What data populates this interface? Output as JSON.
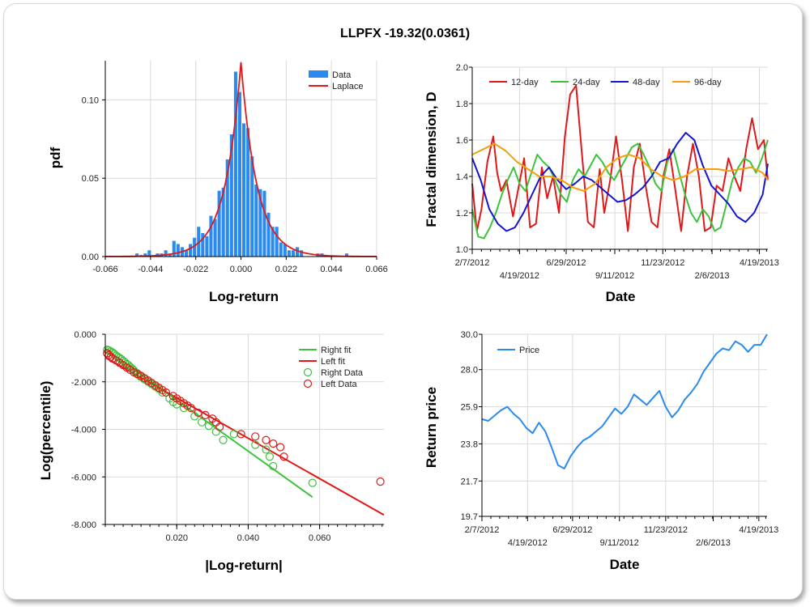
{
  "title": "LLPFX -19.32(0.0361)",
  "colors": {
    "bar": "#2a8af0",
    "laplace": "#e0191c",
    "red": "#e01818",
    "green": "#3cc33c",
    "blue": "#1414d0",
    "orange": "#f5a00a",
    "price": "#2a8af0",
    "grid": "#d9d9d9"
  },
  "chart_data": [
    {
      "type": "bar",
      "id": "hist",
      "xlabel": "Log-return",
      "ylabel": "pdf",
      "xlim": [
        -0.066,
        0.066
      ],
      "ylim": [
        0,
        0.125
      ],
      "xticks": [
        "-0.066",
        "-0.044",
        "-0.022",
        "0.000",
        "0.022",
        "0.044",
        "0.066"
      ],
      "yticks": [
        "0.00",
        "0.05",
        "0.10"
      ],
      "grid": true,
      "legend": "top-right",
      "bin_width": 0.002,
      "bins": [
        -0.0506,
        -0.0486,
        -0.0466,
        -0.0446,
        -0.0406,
        -0.0386,
        -0.0366,
        -0.0346,
        -0.0326,
        -0.0306,
        -0.0286,
        -0.0266,
        -0.0246,
        -0.0226,
        -0.0206,
        -0.0186,
        -0.0166,
        -0.0146,
        -0.0126,
        -0.0106,
        -0.0086,
        -0.0066,
        -0.0046,
        -0.0026,
        -0.0006,
        0.0014,
        0.0034,
        0.0054,
        0.0074,
        0.0094,
        0.0114,
        0.0134,
        0.0154,
        0.0174,
        0.0194,
        0.0214,
        0.0234,
        0.0254,
        0.0274,
        0.0294,
        0.0374,
        0.0394,
        0.0514
      ],
      "values": [
        0.002,
        0.001,
        0.002,
        0.004,
        0.002,
        0.002,
        0.004,
        0.002,
        0.01,
        0.008,
        0.006,
        0.004,
        0.008,
        0.012,
        0.019,
        0.015,
        0.013,
        0.026,
        0.024,
        0.042,
        0.044,
        0.062,
        0.078,
        0.118,
        0.105,
        0.085,
        0.082,
        0.064,
        0.046,
        0.043,
        0.042,
        0.028,
        0.019,
        0.019,
        0.009,
        0.008,
        0.004,
        0.004,
        0.006,
        0.004,
        0.002,
        0.002,
        0.002
      ],
      "series": [
        {
          "name": "Data"
        },
        {
          "name": "Laplace"
        }
      ],
      "laplace": {
        "peak": 0.124,
        "scale": 0.0078
      }
    },
    {
      "type": "line",
      "id": "fractal",
      "xlabel": "Date",
      "ylabel": "Fractal dimension, D",
      "ylim": [
        1.0,
        2.0
      ],
      "yticks": [
        "1.0",
        "1.2",
        "1.4",
        "1.6",
        "1.8",
        "2.0"
      ],
      "xticks_top": [
        "2/7/2012",
        "6/29/2012",
        "11/23/2012",
        "4/19/2013"
      ],
      "xticks_bottom": [
        "4/19/2012",
        "9/11/2012",
        "2/6/2013"
      ],
      "x_range": [
        "2012-02-07",
        "2013-05-02"
      ],
      "grid": true,
      "legend": "top-left",
      "series": [
        {
          "name": "12-day",
          "color": "#e01818",
          "dates": [
            "2012-02-07",
            "2012-02-14",
            "2012-02-21",
            "2012-03-01",
            "2012-03-10",
            "2012-03-16",
            "2012-03-22",
            "2012-03-30",
            "2012-04-09",
            "2012-04-18",
            "2012-04-26",
            "2012-05-05",
            "2012-05-14",
            "2012-05-23",
            "2012-05-31",
            "2012-06-09",
            "2012-06-18",
            "2012-06-27",
            "2012-07-05",
            "2012-07-14",
            "2012-07-23",
            "2012-08-01",
            "2012-08-10",
            "2012-08-19",
            "2012-08-26",
            "2012-09-04",
            "2012-09-13",
            "2012-09-22",
            "2012-10-01",
            "2012-10-10",
            "2012-10-19",
            "2012-10-28",
            "2012-11-06",
            "2012-11-15",
            "2012-11-24",
            "2012-12-03",
            "2012-12-12",
            "2012-12-21",
            "2012-12-30",
            "2013-01-08",
            "2013-01-17",
            "2013-01-26",
            "2013-02-04",
            "2013-02-13",
            "2013-02-22",
            "2013-03-03",
            "2013-03-12",
            "2013-03-21",
            "2013-03-30",
            "2013-04-08",
            "2013-04-17",
            "2013-04-26",
            "2013-05-02"
          ],
          "values": [
            1.36,
            1.1,
            1.22,
            1.48,
            1.62,
            1.42,
            1.32,
            1.38,
            1.18,
            1.35,
            1.5,
            1.12,
            1.14,
            1.45,
            1.28,
            1.4,
            1.2,
            1.62,
            1.85,
            1.9,
            1.52,
            1.15,
            1.12,
            1.44,
            1.2,
            1.38,
            1.62,
            1.38,
            1.1,
            1.45,
            1.58,
            1.35,
            1.15,
            1.12,
            1.4,
            1.55,
            1.33,
            1.1,
            1.4,
            1.58,
            1.4,
            1.1,
            1.12,
            1.35,
            1.32,
            1.5,
            1.4,
            1.32,
            1.55,
            1.72,
            1.55,
            1.6,
            1.38
          ]
        },
        {
          "name": "24-day",
          "color": "#3cc33c",
          "dates": [
            "2012-02-07",
            "2012-02-16",
            "2012-02-25",
            "2012-03-05",
            "2012-03-14",
            "2012-03-23",
            "2012-04-01",
            "2012-04-10",
            "2012-04-19",
            "2012-04-28",
            "2012-05-07",
            "2012-05-16",
            "2012-05-25",
            "2012-06-03",
            "2012-06-12",
            "2012-06-21",
            "2012-06-30",
            "2012-07-09",
            "2012-07-18",
            "2012-07-27",
            "2012-08-05",
            "2012-08-14",
            "2012-08-23",
            "2012-09-01",
            "2012-09-10",
            "2012-09-19",
            "2012-09-28",
            "2012-10-07",
            "2012-10-16",
            "2012-10-25",
            "2012-11-03",
            "2012-11-12",
            "2012-11-21",
            "2012-11-30",
            "2012-12-09",
            "2012-12-18",
            "2012-12-27",
            "2013-01-05",
            "2013-01-14",
            "2013-01-23",
            "2013-02-01",
            "2013-02-10",
            "2013-02-19",
            "2013-02-28",
            "2013-03-09",
            "2013-03-18",
            "2013-03-27",
            "2013-04-05",
            "2013-04-14",
            "2013-04-23",
            "2013-05-02"
          ],
          "values": [
            1.22,
            1.07,
            1.06,
            1.12,
            1.2,
            1.3,
            1.38,
            1.45,
            1.36,
            1.32,
            1.42,
            1.52,
            1.48,
            1.45,
            1.38,
            1.3,
            1.26,
            1.38,
            1.44,
            1.4,
            1.46,
            1.52,
            1.48,
            1.42,
            1.38,
            1.44,
            1.5,
            1.56,
            1.58,
            1.52,
            1.45,
            1.36,
            1.32,
            1.48,
            1.55,
            1.42,
            1.3,
            1.2,
            1.15,
            1.22,
            1.18,
            1.1,
            1.12,
            1.25,
            1.38,
            1.45,
            1.5,
            1.48,
            1.42,
            1.5,
            1.6
          ]
        },
        {
          "name": "48-day",
          "color": "#1414d0",
          "dates": [
            "2012-02-07",
            "2012-02-20",
            "2012-03-04",
            "2012-03-17",
            "2012-03-30",
            "2012-04-12",
            "2012-04-25",
            "2012-05-08",
            "2012-05-21",
            "2012-06-03",
            "2012-06-16",
            "2012-06-29",
            "2012-07-12",
            "2012-07-25",
            "2012-08-07",
            "2012-08-20",
            "2012-09-02",
            "2012-09-15",
            "2012-09-28",
            "2012-10-11",
            "2012-10-24",
            "2012-11-06",
            "2012-11-19",
            "2012-12-02",
            "2012-12-15",
            "2012-12-28",
            "2013-01-10",
            "2013-01-23",
            "2013-02-05",
            "2013-02-18",
            "2013-03-03",
            "2013-03-16",
            "2013-03-29",
            "2013-04-11",
            "2013-04-24",
            "2013-05-02"
          ],
          "values": [
            1.5,
            1.38,
            1.22,
            1.14,
            1.1,
            1.12,
            1.2,
            1.3,
            1.4,
            1.45,
            1.38,
            1.33,
            1.36,
            1.4,
            1.38,
            1.34,
            1.3,
            1.26,
            1.27,
            1.3,
            1.34,
            1.4,
            1.48,
            1.5,
            1.58,
            1.64,
            1.6,
            1.46,
            1.35,
            1.3,
            1.25,
            1.18,
            1.15,
            1.2,
            1.3,
            1.47
          ]
        },
        {
          "name": "96-day",
          "color": "#f5a00a",
          "dates": [
            "2012-02-07",
            "2012-02-24",
            "2012-03-12",
            "2012-03-29",
            "2012-04-15",
            "2012-05-02",
            "2012-05-19",
            "2012-06-05",
            "2012-06-22",
            "2012-07-09",
            "2012-07-26",
            "2012-08-12",
            "2012-08-29",
            "2012-09-15",
            "2012-10-02",
            "2012-10-19",
            "2012-11-05",
            "2012-11-22",
            "2012-12-09",
            "2012-12-26",
            "2013-01-12",
            "2013-01-29",
            "2013-02-15",
            "2013-03-04",
            "2013-03-21",
            "2013-04-07",
            "2013-04-24",
            "2013-05-02"
          ],
          "values": [
            1.52,
            1.55,
            1.58,
            1.54,
            1.48,
            1.44,
            1.4,
            1.4,
            1.38,
            1.34,
            1.32,
            1.36,
            1.45,
            1.5,
            1.52,
            1.5,
            1.44,
            1.4,
            1.38,
            1.4,
            1.44,
            1.44,
            1.44,
            1.43,
            1.44,
            1.45,
            1.42,
            1.38
          ]
        }
      ]
    },
    {
      "type": "scatter",
      "id": "tail",
      "xlabel": "|Log-return|",
      "ylabel": "Log(percentile)",
      "xlim": [
        0,
        0.078
      ],
      "ylim": [
        -8,
        0
      ],
      "xticks": [
        "0.020",
        "0.040",
        "0.060"
      ],
      "yticks": [
        "0.000",
        "-2.000",
        "-4.000",
        "-6.000",
        "-8.000"
      ],
      "grid": true,
      "legend": "top-right",
      "fits": [
        {
          "name": "Right fit",
          "color": "#3cc33c",
          "x": [
            0,
            0.058
          ],
          "y": [
            -0.62,
            -6.85
          ]
        },
        {
          "name": "Left fit",
          "color": "#e01818",
          "x": [
            0,
            0.078
          ],
          "y": [
            -0.98,
            -7.6
          ]
        }
      ],
      "right_data": {
        "name": "Right Data",
        "color": "#3cc33c",
        "x": [
          0.0005,
          0.001,
          0.0015,
          0.002,
          0.0025,
          0.003,
          0.0035,
          0.004,
          0.0045,
          0.005,
          0.0055,
          0.006,
          0.0065,
          0.007,
          0.0075,
          0.008,
          0.0085,
          0.009,
          0.0095,
          0.01,
          0.011,
          0.012,
          0.013,
          0.014,
          0.015,
          0.016,
          0.018,
          0.019,
          0.02,
          0.022,
          0.025,
          0.027,
          0.029,
          0.031,
          0.033,
          0.036,
          0.042,
          0.045,
          0.046,
          0.047,
          0.058
        ],
        "y": [
          -0.65,
          -0.68,
          -0.72,
          -0.77,
          -0.82,
          -0.9,
          -0.95,
          -1.0,
          -1.05,
          -1.12,
          -1.18,
          -1.25,
          -1.3,
          -1.38,
          -1.45,
          -1.52,
          -1.6,
          -1.65,
          -1.72,
          -1.8,
          -1.9,
          -2.0,
          -2.1,
          -2.2,
          -2.3,
          -2.45,
          -2.7,
          -2.85,
          -2.95,
          -3.1,
          -3.45,
          -3.7,
          -3.85,
          -4.1,
          -4.45,
          -4.2,
          -4.65,
          -4.85,
          -5.15,
          -5.55,
          -6.25
        ]
      },
      "left_data": {
        "name": "Left Data",
        "color": "#e01818",
        "x": [
          0.0005,
          0.001,
          0.0015,
          0.002,
          0.003,
          0.004,
          0.005,
          0.006,
          0.007,
          0.008,
          0.009,
          0.01,
          0.011,
          0.012,
          0.013,
          0.014,
          0.015,
          0.016,
          0.017,
          0.019,
          0.02,
          0.021,
          0.022,
          0.023,
          0.024,
          0.026,
          0.028,
          0.03,
          0.031,
          0.032,
          0.038,
          0.042,
          0.045,
          0.047,
          0.049,
          0.05,
          0.077
        ],
        "y": [
          -0.8,
          -0.88,
          -0.95,
          -1.02,
          -1.1,
          -1.2,
          -1.3,
          -1.4,
          -1.5,
          -1.6,
          -1.68,
          -1.75,
          -1.85,
          -1.95,
          -2.05,
          -2.15,
          -2.25,
          -2.35,
          -2.45,
          -2.6,
          -2.7,
          -2.8,
          -2.9,
          -3.0,
          -3.1,
          -3.3,
          -3.4,
          -3.55,
          -3.7,
          -3.9,
          -4.2,
          -4.3,
          -4.45,
          -4.6,
          -4.75,
          -5.15,
          -6.2
        ]
      }
    },
    {
      "type": "line",
      "id": "price",
      "xlabel": "Date",
      "ylabel": "Return price",
      "ylim": [
        19.7,
        30.0
      ],
      "yticks": [
        "30.0",
        "28.0",
        "25.9",
        "23.8",
        "21.7",
        "19.7"
      ],
      "ytick_values": [
        30.0,
        28.0,
        25.9,
        23.8,
        21.7,
        19.7
      ],
      "xticks_top": [
        "2/7/2012",
        "6/29/2012",
        "11/23/2012",
        "4/19/2013"
      ],
      "xticks_bottom": [
        "4/19/2012",
        "9/11/2012",
        "2/6/2013"
      ],
      "x_range": [
        "2012-02-07",
        "2013-05-02"
      ],
      "grid": true,
      "legend": "top-left",
      "series": [
        {
          "name": "Price",
          "color": "#2a8af0",
          "dates": [
            "2012-02-07",
            "2012-02-17",
            "2012-02-27",
            "2012-03-08",
            "2012-03-18",
            "2012-03-28",
            "2012-04-07",
            "2012-04-17",
            "2012-04-27",
            "2012-05-07",
            "2012-05-17",
            "2012-05-27",
            "2012-06-06",
            "2012-06-16",
            "2012-06-26",
            "2012-07-06",
            "2012-07-16",
            "2012-07-26",
            "2012-08-05",
            "2012-08-15",
            "2012-08-25",
            "2012-09-04",
            "2012-09-14",
            "2012-09-24",
            "2012-10-04",
            "2012-10-14",
            "2012-10-24",
            "2012-11-03",
            "2012-11-13",
            "2012-11-23",
            "2012-12-03",
            "2012-12-13",
            "2012-12-23",
            "2013-01-02",
            "2013-01-12",
            "2013-01-22",
            "2013-02-01",
            "2013-02-11",
            "2013-02-21",
            "2013-03-03",
            "2013-03-13",
            "2013-03-23",
            "2013-04-02",
            "2013-04-12",
            "2013-04-22",
            "2013-05-02"
          ],
          "values": [
            25.2,
            25.1,
            25.4,
            25.7,
            25.9,
            25.5,
            25.2,
            24.7,
            24.4,
            25.0,
            24.5,
            23.6,
            22.6,
            22.4,
            23.1,
            23.6,
            24.0,
            24.2,
            24.5,
            24.8,
            25.3,
            25.8,
            25.5,
            25.9,
            26.6,
            26.3,
            26.0,
            26.4,
            26.8,
            25.9,
            25.3,
            25.7,
            26.3,
            26.7,
            27.2,
            27.9,
            28.4,
            28.9,
            29.2,
            29.1,
            29.6,
            29.4,
            29.0,
            29.4,
            29.4,
            30.0
          ]
        }
      ]
    }
  ]
}
